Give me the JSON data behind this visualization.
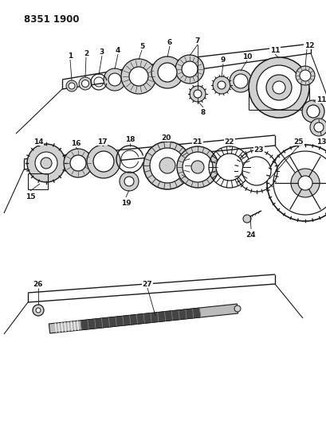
{
  "title": "8351 1900",
  "bg_color": "#ffffff",
  "line_color": "#1a1a1a",
  "dark_gray": "#444444",
  "med_gray": "#888888",
  "light_gray": "#bbbbbb",
  "fill_gray": "#d0d0d0"
}
